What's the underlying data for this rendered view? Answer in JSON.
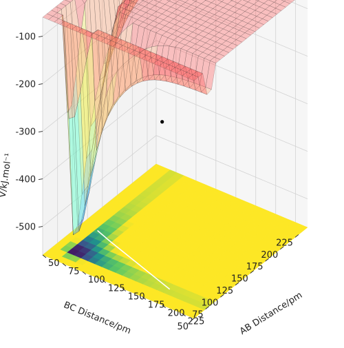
{
  "chart_data": {
    "type": "surface3d",
    "title": "",
    "xlabel": "AB Distance/pm",
    "ylabel": "BC Distance/pm",
    "zlabel": "V/kJ.mol⁻¹",
    "x_ticks": [
      "50",
      "75",
      "100",
      "125",
      "150",
      "175",
      "200",
      "225"
    ],
    "y_ticks": [
      "50",
      "75",
      "100",
      "125",
      "150",
      "175",
      "200",
      "225"
    ],
    "z_ticks": [
      "-500",
      "-400",
      "-300",
      "-200",
      "-100"
    ],
    "xlim": [
      50,
      240
    ],
    "ylim": [
      50,
      240
    ],
    "zlim": [
      -560,
      -60
    ],
    "colormap_surface": "jet",
    "colormap_contour": "viridis",
    "surface_alpha": 0.35,
    "energy_levels": [
      {
        "range": [
          -560,
          -480
        ],
        "color": "#3b3be6"
      },
      {
        "range": [
          -480,
          -400
        ],
        "color": "#35b7ff"
      },
      {
        "range": [
          -400,
          -300
        ],
        "color": "#7fffd4"
      },
      {
        "range": [
          -300,
          -200
        ],
        "color": "#f0f050"
      },
      {
        "range": [
          -200,
          -100
        ],
        "color": "#ffa070"
      },
      {
        "range": [
          -100,
          -60
        ],
        "color": "#ff5a5a"
      }
    ],
    "valley_depth": -560,
    "plateau_energy": -80,
    "saddle_point": {
      "x": 95,
      "y": 95,
      "z": -470
    },
    "marked_point": {
      "x": 80,
      "y": 210,
      "z": -420
    },
    "trajectory": [
      [
        70,
        115
      ],
      [
        90,
        108
      ],
      [
        115,
        100
      ],
      [
        140,
        92
      ],
      [
        165,
        84
      ],
      [
        190,
        76
      ]
    ],
    "grid": true
  }
}
